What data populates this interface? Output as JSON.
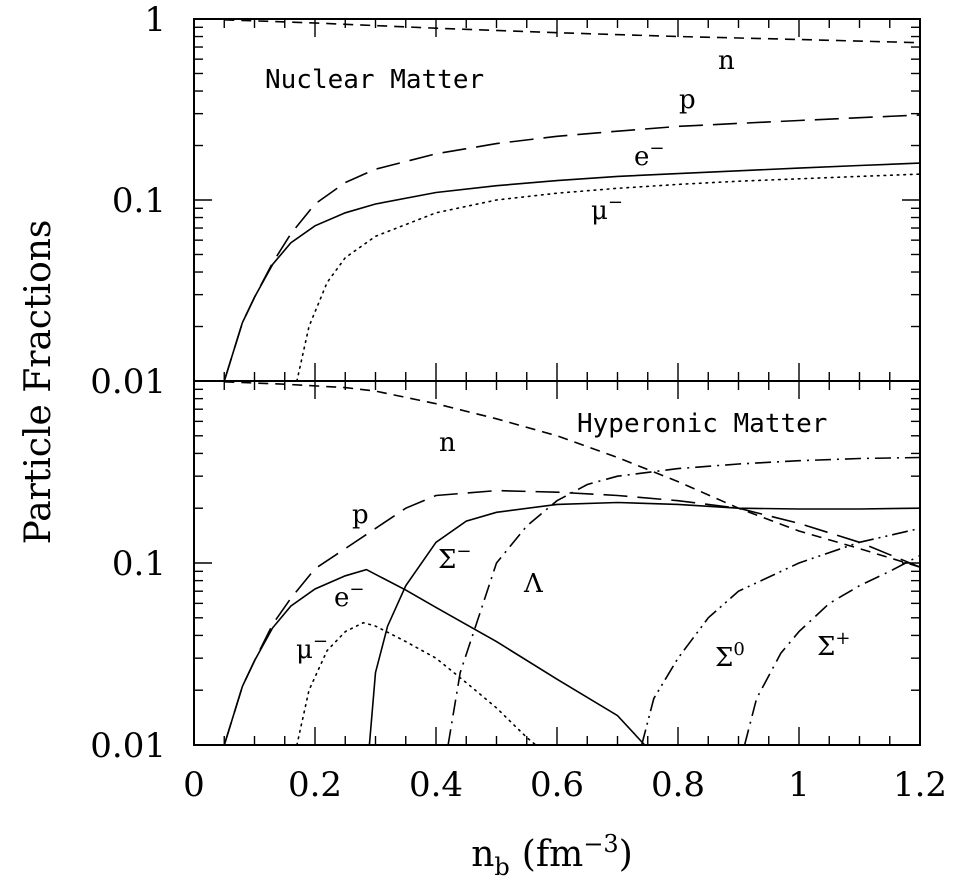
{
  "chart_data": [
    {
      "type": "line",
      "panel_label": "Nuclear Matter",
      "xlabel_base": "n",
      "xlabel_sub": "b",
      "xlabel_unit": "(fm",
      "xlabel_exp": "−3",
      "xlabel_close": ")",
      "ylabel": "Particle Fractions",
      "xlim": [
        0,
        1.2
      ],
      "ylim": [
        0.01,
        1
      ],
      "yscale": "log",
      "x_ticks": [
        "0",
        "0.2",
        "0.4",
        "0.6",
        "0.8",
        "1",
        "1.2"
      ],
      "y_ticks": [
        "1",
        "0.1",
        "0.01"
      ],
      "series": [
        {
          "name": "n",
          "style": "short-dash",
          "label": {
            "base": "n",
            "sup": ""
          },
          "points": [
            [
              0.05,
              0.99
            ],
            [
              0.2,
              0.95
            ],
            [
              0.4,
              0.89
            ],
            [
              0.6,
              0.84
            ],
            [
              0.8,
              0.8
            ],
            [
              1.0,
              0.77
            ],
            [
              1.2,
              0.74
            ]
          ]
        },
        {
          "name": "p",
          "style": "long-dash",
          "label": {
            "base": "p",
            "sup": ""
          },
          "points": [
            [
              0.05,
              0.01
            ],
            [
              0.08,
              0.021
            ],
            [
              0.1,
              0.029
            ],
            [
              0.13,
              0.045
            ],
            [
              0.16,
              0.065
            ],
            [
              0.2,
              0.095
            ],
            [
              0.25,
              0.125
            ],
            [
              0.3,
              0.148
            ],
            [
              0.4,
              0.18
            ],
            [
              0.5,
              0.205
            ],
            [
              0.6,
              0.225
            ],
            [
              0.7,
              0.24
            ],
            [
              0.8,
              0.255
            ],
            [
              0.9,
              0.265
            ],
            [
              1.0,
              0.275
            ],
            [
              1.1,
              0.285
            ],
            [
              1.2,
              0.295
            ]
          ]
        },
        {
          "name": "e−",
          "style": "solid",
          "label": {
            "base": "e",
            "sup": "−"
          },
          "points": [
            [
              0.05,
              0.01
            ],
            [
              0.08,
              0.021
            ],
            [
              0.1,
              0.029
            ],
            [
              0.13,
              0.044
            ],
            [
              0.16,
              0.058
            ],
            [
              0.2,
              0.072
            ],
            [
              0.25,
              0.085
            ],
            [
              0.3,
              0.095
            ],
            [
              0.4,
              0.11
            ],
            [
              0.5,
              0.12
            ],
            [
              0.6,
              0.128
            ],
            [
              0.7,
              0.135
            ],
            [
              0.8,
              0.14
            ],
            [
              0.9,
              0.145
            ],
            [
              1.0,
              0.15
            ],
            [
              1.1,
              0.155
            ],
            [
              1.2,
              0.16
            ]
          ]
        },
        {
          "name": "μ−",
          "style": "dotted",
          "label": {
            "base": "μ",
            "sup": "−"
          },
          "points": [
            [
              0.17,
              0.01
            ],
            [
              0.19,
              0.02
            ],
            [
              0.22,
              0.035
            ],
            [
              0.25,
              0.048
            ],
            [
              0.3,
              0.063
            ],
            [
              0.4,
              0.085
            ],
            [
              0.5,
              0.1
            ],
            [
              0.6,
              0.109
            ],
            [
              0.7,
              0.116
            ],
            [
              0.8,
              0.122
            ],
            [
              0.9,
              0.127
            ],
            [
              1.0,
              0.131
            ],
            [
              1.1,
              0.135
            ],
            [
              1.2,
              0.139
            ]
          ]
        }
      ]
    },
    {
      "type": "line",
      "panel_label": "Hyperonic Matter",
      "xlim": [
        0,
        1.2
      ],
      "ylim": [
        0.01,
        1
      ],
      "yscale": "log",
      "x_ticks": [
        "0",
        "0.2",
        "0.4",
        "0.6",
        "0.8",
        "1",
        "1.2"
      ],
      "y_ticks": [
        "0.1",
        "0.01"
      ],
      "series": [
        {
          "name": "n",
          "style": "short-dash",
          "label": {
            "base": "n",
            "sup": ""
          },
          "points": [
            [
              0.05,
              0.99
            ],
            [
              0.15,
              0.96
            ],
            [
              0.25,
              0.92
            ],
            [
              0.3,
              0.88
            ],
            [
              0.4,
              0.75
            ],
            [
              0.5,
              0.62
            ],
            [
              0.6,
              0.5
            ],
            [
              0.7,
              0.38
            ],
            [
              0.8,
              0.28
            ],
            [
              0.9,
              0.2
            ],
            [
              1.0,
              0.15
            ],
            [
              1.1,
              0.12
            ],
            [
              1.2,
              0.095
            ]
          ]
        },
        {
          "name": "p",
          "style": "long-dash",
          "label": {
            "base": "p",
            "sup": ""
          },
          "points": [
            [
              0.05,
              0.01
            ],
            [
              0.08,
              0.021
            ],
            [
              0.1,
              0.029
            ],
            [
              0.13,
              0.046
            ],
            [
              0.16,
              0.064
            ],
            [
              0.2,
              0.093
            ],
            [
              0.25,
              0.12
            ],
            [
              0.3,
              0.155
            ],
            [
              0.35,
              0.2
            ],
            [
              0.4,
              0.235
            ],
            [
              0.5,
              0.25
            ],
            [
              0.6,
              0.245
            ],
            [
              0.7,
              0.235
            ],
            [
              0.8,
              0.22
            ],
            [
              0.9,
              0.2
            ],
            [
              1.0,
              0.165
            ],
            [
              1.1,
              0.13
            ],
            [
              1.2,
              0.095
            ]
          ]
        },
        {
          "name": "e−",
          "style": "solid",
          "label": {
            "base": "e",
            "sup": "−"
          },
          "points": [
            [
              0.05,
              0.01
            ],
            [
              0.08,
              0.021
            ],
            [
              0.1,
              0.029
            ],
            [
              0.13,
              0.044
            ],
            [
              0.16,
              0.058
            ],
            [
              0.2,
              0.072
            ],
            [
              0.25,
              0.085
            ],
            [
              0.285,
              0.092
            ],
            [
              0.35,
              0.071
            ],
            [
              0.4,
              0.057
            ],
            [
              0.5,
              0.037
            ],
            [
              0.6,
              0.023
            ],
            [
              0.7,
              0.0145
            ],
            [
              0.745,
              0.01
            ]
          ]
        },
        {
          "name": "μ−",
          "style": "dotted",
          "label": {
            "base": "μ",
            "sup": "−"
          },
          "points": [
            [
              0.17,
              0.01
            ],
            [
              0.19,
              0.02
            ],
            [
              0.22,
              0.033
            ],
            [
              0.25,
              0.042
            ],
            [
              0.28,
              0.047
            ],
            [
              0.3,
              0.045
            ],
            [
              0.35,
              0.037
            ],
            [
              0.4,
              0.03
            ],
            [
              0.45,
              0.022
            ],
            [
              0.5,
              0.016
            ],
            [
              0.55,
              0.011
            ],
            [
              0.565,
              0.01
            ]
          ]
        },
        {
          "name": "Σ−",
          "style": "solid",
          "label": {
            "base": "Σ",
            "sup": "−"
          },
          "points": [
            [
              0.29,
              0.01
            ],
            [
              0.3,
              0.025
            ],
            [
              0.32,
              0.045
            ],
            [
              0.35,
              0.075
            ],
            [
              0.4,
              0.13
            ],
            [
              0.45,
              0.17
            ],
            [
              0.5,
              0.19
            ],
            [
              0.6,
              0.21
            ],
            [
              0.7,
              0.215
            ],
            [
              0.8,
              0.21
            ],
            [
              0.9,
              0.2
            ],
            [
              1.0,
              0.198
            ],
            [
              1.1,
              0.198
            ],
            [
              1.2,
              0.2
            ]
          ]
        },
        {
          "name": "Λ",
          "style": "dash-dot",
          "label": {
            "base": "Λ",
            "sup": ""
          },
          "points": [
            [
              0.42,
              0.01
            ],
            [
              0.44,
              0.025
            ],
            [
              0.47,
              0.05
            ],
            [
              0.5,
              0.1
            ],
            [
              0.55,
              0.16
            ],
            [
              0.6,
              0.22
            ],
            [
              0.65,
              0.27
            ],
            [
              0.7,
              0.3
            ],
            [
              0.8,
              0.33
            ],
            [
              0.9,
              0.35
            ],
            [
              1.0,
              0.365
            ],
            [
              1.1,
              0.375
            ],
            [
              1.2,
              0.38
            ]
          ]
        },
        {
          "name": "Σ0",
          "style": "dash-dot-dot",
          "label": {
            "base": "Σ",
            "sup": "0"
          },
          "points": [
            [
              0.74,
              0.01
            ],
            [
              0.76,
              0.018
            ],
            [
              0.8,
              0.03
            ],
            [
              0.85,
              0.05
            ],
            [
              0.9,
              0.07
            ],
            [
              1.0,
              0.1
            ],
            [
              1.1,
              0.13
            ],
            [
              1.2,
              0.155
            ]
          ]
        },
        {
          "name": "Σ+",
          "style": "dash-dot",
          "label": {
            "base": "Σ",
            "sup": "+"
          },
          "points": [
            [
              0.91,
              0.01
            ],
            [
              0.93,
              0.018
            ],
            [
              0.97,
              0.032
            ],
            [
              1.0,
              0.042
            ],
            [
              1.05,
              0.06
            ],
            [
              1.1,
              0.075
            ],
            [
              1.15,
              0.09
            ],
            [
              1.2,
              0.11
            ]
          ]
        }
      ]
    }
  ]
}
